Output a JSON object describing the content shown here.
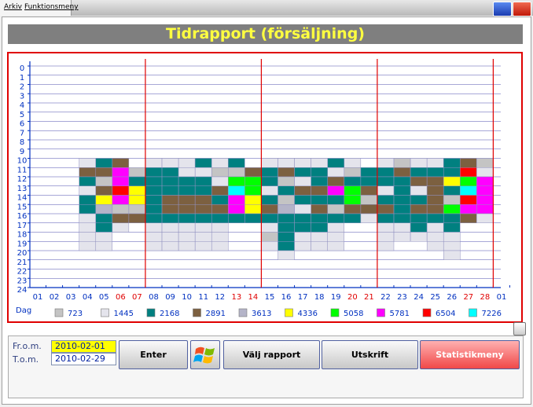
{
  "menu": [
    "Arkiv",
    "Funktionsmeny"
  ],
  "title": "Tidrapport (försäljning)",
  "chart": {
    "y_labels": [
      0,
      1,
      2,
      3,
      4,
      5,
      6,
      7,
      8,
      9,
      10,
      11,
      12,
      13,
      14,
      15,
      16,
      17,
      18,
      19,
      20,
      21,
      22,
      23,
      24
    ],
    "x_labels": [
      "01",
      "02",
      "03",
      "04",
      "05",
      "06",
      "07",
      "08",
      "09",
      "10",
      "11",
      "12",
      "13",
      "14",
      "15",
      "16",
      "17",
      "18",
      "19",
      "20",
      "21",
      "22",
      "23",
      "24",
      "25",
      "26",
      "27",
      "28",
      "01"
    ],
    "x_label_colors": [
      "#0030c0",
      "#0030c0",
      "#0030c0",
      "#0030c0",
      "#0030c0",
      "#e00000",
      "#e00000",
      "#0030c0",
      "#0030c0",
      "#0030c0",
      "#0030c0",
      "#0030c0",
      "#e00000",
      "#e00000",
      "#0030c0",
      "#0030c0",
      "#0030c0",
      "#0030c0",
      "#0030c0",
      "#e00000",
      "#e00000",
      "#0030c0",
      "#0030c0",
      "#0030c0",
      "#0030c0",
      "#0030c0",
      "#e00000",
      "#e00000",
      "#0030c0"
    ],
    "x_axis_label": "Dag",
    "legend_values": [
      723,
      1445,
      2168,
      2891,
      3613,
      4336,
      5058,
      5781,
      6504,
      7226
    ],
    "legend_colors": [
      "#c4c4c4",
      "#e4e4ec",
      "#008080",
      "#7c6040",
      "#b4b4c8",
      "#ffff00",
      "#00ff00",
      "#ff00ff",
      "#ff0000",
      "#00ffff"
    ],
    "cells": [
      [
        null,
        null,
        null,
        null,
        null,
        null,
        null,
        null,
        null,
        null,
        null,
        null,
        null,
        null,
        null,
        null,
        null,
        null,
        null,
        null,
        null,
        null,
        null,
        null
      ],
      [
        null,
        null,
        null,
        null,
        null,
        null,
        null,
        null,
        null,
        null,
        null,
        null,
        null,
        null,
        null,
        null,
        null,
        null,
        null,
        null,
        null,
        null,
        null,
        null
      ],
      [
        null,
        null,
        null,
        null,
        null,
        null,
        null,
        null,
        null,
        null,
        null,
        null,
        null,
        null,
        null,
        null,
        null,
        null,
        null,
        null,
        null,
        null,
        null,
        null
      ],
      [
        null,
        null,
        null,
        null,
        null,
        null,
        null,
        null,
        null,
        null,
        1,
        3,
        2,
        1,
        2,
        2,
        1,
        1,
        1,
        1,
        null,
        null,
        null,
        null
      ],
      [
        null,
        null,
        null,
        null,
        null,
        null,
        null,
        null,
        null,
        null,
        2,
        3,
        0,
        3,
        5,
        4,
        2,
        2,
        1,
        1,
        null,
        null,
        null,
        null
      ],
      [
        null,
        null,
        null,
        null,
        null,
        null,
        null,
        null,
        null,
        null,
        3,
        7,
        7,
        8,
        7,
        0,
        3,
        1,
        null,
        null,
        null,
        null,
        null,
        null
      ],
      [
        null,
        null,
        null,
        null,
        null,
        null,
        null,
        null,
        null,
        null,
        null,
        0,
        2,
        5,
        5,
        0,
        3,
        null,
        null,
        null,
        null,
        null,
        null,
        null
      ],
      [
        null,
        null,
        null,
        null,
        null,
        null,
        null,
        null,
        null,
        null,
        1,
        2,
        2,
        2,
        2,
        2,
        2,
        1,
        1,
        1,
        null,
        null,
        null,
        null
      ],
      [
        null,
        null,
        null,
        null,
        null,
        null,
        null,
        null,
        null,
        null,
        1,
        2,
        2,
        2,
        3,
        3,
        2,
        1,
        1,
        1,
        null,
        null,
        null,
        null
      ],
      [
        null,
        null,
        null,
        null,
        null,
        null,
        null,
        null,
        null,
        null,
        1,
        1,
        2,
        2,
        3,
        3,
        2,
        1,
        1,
        1,
        null,
        null,
        null,
        null
      ],
      [
        null,
        null,
        null,
        null,
        null,
        null,
        null,
        null,
        null,
        null,
        2,
        1,
        2,
        2,
        3,
        3,
        2,
        1,
        1,
        1,
        null,
        null,
        null,
        null
      ],
      [
        null,
        null,
        null,
        null,
        null,
        null,
        null,
        null,
        null,
        null,
        1,
        0,
        1,
        3,
        2,
        3,
        2,
        1,
        1,
        1,
        null,
        null,
        null,
        null
      ],
      [
        null,
        null,
        null,
        null,
        null,
        null,
        null,
        null,
        null,
        null,
        2,
        0,
        6,
        9,
        7,
        7,
        2,
        null,
        null,
        null,
        null,
        null,
        null,
        null
      ],
      [
        null,
        null,
        null,
        null,
        null,
        null,
        null,
        null,
        null,
        null,
        null,
        3,
        6,
        6,
        5,
        5,
        2,
        null,
        null,
        null,
        null,
        null,
        null,
        null
      ],
      [
        null,
        null,
        null,
        null,
        null,
        null,
        null,
        null,
        null,
        null,
        1,
        2,
        2,
        1,
        2,
        3,
        2,
        1,
        0,
        1,
        null,
        null,
        null,
        null
      ],
      [
        null,
        null,
        null,
        null,
        null,
        null,
        null,
        null,
        null,
        null,
        1,
        3,
        0,
        2,
        0,
        4,
        2,
        2,
        2,
        2,
        1,
        null,
        null,
        null
      ],
      [
        null,
        null,
        null,
        null,
        null,
        null,
        null,
        null,
        null,
        null,
        1,
        2,
        1,
        3,
        2,
        1,
        2,
        2,
        1,
        1,
        null,
        null,
        null,
        null
      ],
      [
        null,
        null,
        null,
        null,
        null,
        null,
        null,
        null,
        null,
        null,
        1,
        2,
        2,
        3,
        2,
        3,
        2,
        2,
        1,
        1,
        null,
        null,
        null,
        null
      ],
      [
        null,
        null,
        null,
        null,
        null,
        null,
        null,
        null,
        null,
        null,
        2,
        1,
        3,
        7,
        2,
        0,
        2,
        1,
        1,
        1,
        null,
        null,
        null,
        null
      ],
      [
        null,
        null,
        null,
        null,
        null,
        null,
        null,
        null,
        null,
        null,
        1,
        0,
        2,
        6,
        6,
        3,
        2,
        null,
        null,
        null,
        null,
        null,
        null,
        null
      ],
      [
        null,
        null,
        null,
        null,
        null,
        null,
        null,
        null,
        null,
        null,
        null,
        2,
        2,
        3,
        0,
        3,
        1,
        null,
        null,
        null,
        null,
        null,
        null,
        null
      ],
      [
        null,
        null,
        null,
        null,
        null,
        null,
        null,
        null,
        null,
        null,
        1,
        2,
        2,
        1,
        2,
        3,
        2,
        1,
        1,
        1,
        null,
        null,
        null,
        null
      ],
      [
        null,
        null,
        null,
        null,
        null,
        null,
        null,
        null,
        null,
        null,
        0,
        3,
        2,
        2,
        2,
        2,
        2,
        1,
        1,
        null,
        null,
        null,
        null,
        null
      ],
      [
        null,
        null,
        null,
        null,
        null,
        null,
        null,
        null,
        null,
        null,
        1,
        2,
        3,
        1,
        2,
        3,
        2,
        2,
        1,
        null,
        null,
        null,
        null,
        null
      ],
      [
        null,
        null,
        null,
        null,
        null,
        null,
        null,
        null,
        null,
        null,
        1,
        2,
        3,
        3,
        3,
        3,
        2,
        1,
        1,
        1,
        null,
        null,
        null,
        null
      ],
      [
        null,
        null,
        null,
        null,
        null,
        null,
        null,
        null,
        null,
        null,
        2,
        2,
        5,
        2,
        0,
        6,
        2,
        2,
        1,
        1,
        1,
        null,
        null,
        null
      ],
      [
        null,
        null,
        null,
        null,
        null,
        null,
        null,
        null,
        null,
        null,
        3,
        8,
        6,
        9,
        8,
        7,
        3,
        null,
        null,
        null,
        null,
        null,
        null,
        null
      ],
      [
        null,
        null,
        null,
        null,
        null,
        null,
        null,
        null,
        null,
        null,
        0,
        1,
        7,
        7,
        7,
        7,
        1,
        null,
        null,
        null,
        null,
        null,
        null,
        null
      ],
      [
        null,
        null,
        null,
        null,
        null,
        null,
        null,
        null,
        null,
        null,
        null,
        null,
        null,
        null,
        null,
        null,
        null,
        null,
        null,
        null,
        null,
        null,
        null,
        null
      ]
    ]
  },
  "form": {
    "from_label": "Fr.o.m.",
    "from_value": "2010-02-01",
    "to_label": "T.o.m.",
    "to_value": "2010-02-29"
  },
  "buttons": [
    "Enter",
    "Välj rapport",
    "Utskrift",
    "Statistikmeny"
  ]
}
